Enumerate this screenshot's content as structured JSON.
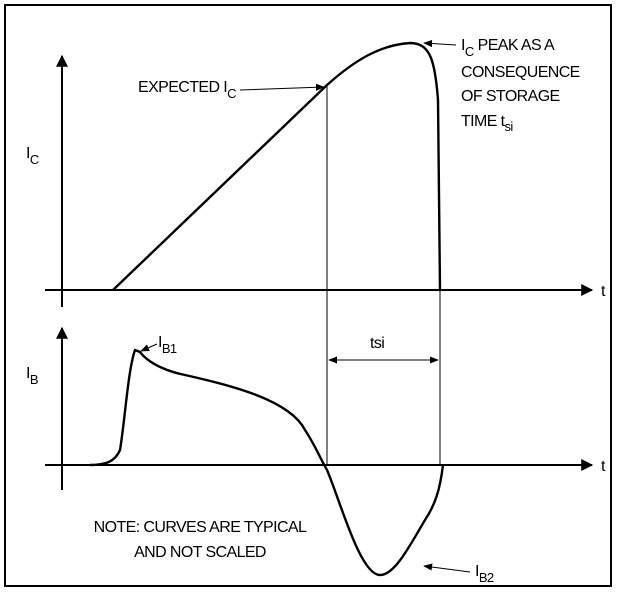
{
  "top_plot": {
    "y_label": "I",
    "y_label_sub": "C",
    "x_label": "t"
  },
  "bottom_plot": {
    "y_label": "I",
    "y_label_sub": "B",
    "x_label": "t"
  },
  "annotations": {
    "expected": {
      "text": "EXPECTED I",
      "sub": "C"
    },
    "peak": {
      "first_main": "I",
      "first_sub": "C",
      "first_rest": "PEAK AS A",
      "line2": "CONSEQUENCE",
      "line3": "OF STORAGE",
      "line4_main": "TIME t",
      "line4_sub": "si"
    },
    "tsi": "tsi",
    "ib1": {
      "main": "I",
      "sub": "B1"
    },
    "ib2": {
      "main": "I",
      "sub": "B2"
    },
    "note": [
      "NOTE: CURVES ARE TYPICAL",
      "AND NOT SCALED"
    ]
  }
}
